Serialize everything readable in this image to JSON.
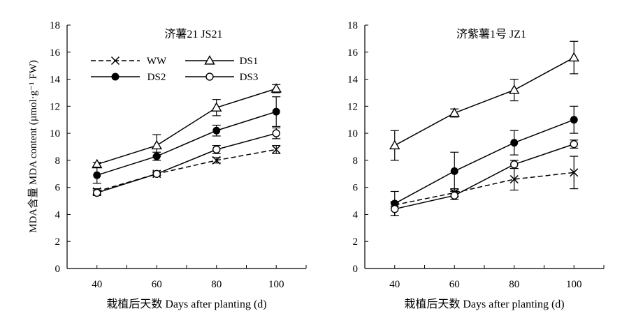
{
  "y_axis_label": "MDA含量 MDA content (µmol·g⁻¹ FW)",
  "legend": [
    {
      "label": "WW",
      "marker": "cross",
      "dash": true
    },
    {
      "label": "DS1",
      "marker": "triangle",
      "dash": false
    },
    {
      "label": "DS2",
      "marker": "filled-circle",
      "dash": false
    },
    {
      "label": "DS3",
      "marker": "open-circle",
      "dash": false
    }
  ],
  "chart_data": [
    {
      "type": "line",
      "title": "济薯21 JS21",
      "xlabel": "栽植后天数 Days after planting (d)",
      "ylabel": "MDA含量 MDA content (µmol·g⁻¹ FW)",
      "x": [
        40,
        60,
        80,
        100
      ],
      "xlim": [
        30,
        110
      ],
      "ylim": [
        0,
        18
      ],
      "yticks": [
        0,
        2,
        4,
        6,
        8,
        10,
        12,
        14,
        16,
        18
      ],
      "legend_position": "top-left",
      "series": [
        {
          "name": "WW",
          "marker": "cross",
          "dash": true,
          "values": [
            5.7,
            7.0,
            8.0,
            8.8
          ],
          "errors": [
            0.2,
            0.1,
            0.2,
            0.3
          ]
        },
        {
          "name": "DS1",
          "marker": "triangle",
          "dash": false,
          "values": [
            7.7,
            9.1,
            11.9,
            13.3
          ],
          "errors": [
            0.15,
            0.8,
            0.6,
            0.3
          ]
        },
        {
          "name": "DS2",
          "marker": "filled-circle",
          "dash": false,
          "values": [
            6.9,
            8.3,
            10.2,
            11.6
          ],
          "errors": [
            0.6,
            0.3,
            0.4,
            1.1
          ]
        },
        {
          "name": "DS3",
          "marker": "open-circle",
          "dash": false,
          "values": [
            5.6,
            7.0,
            8.8,
            10.0
          ],
          "errors": [
            0.2,
            0.15,
            0.3,
            0.4
          ]
        }
      ]
    },
    {
      "type": "line",
      "title": "济紫薯1号 JZ1",
      "xlabel": "栽植后天数 Days after planting (d)",
      "ylabel": "",
      "x": [
        40,
        60,
        80,
        100
      ],
      "xlim": [
        30,
        110
      ],
      "ylim": [
        0,
        18
      ],
      "yticks": [
        0,
        2,
        4,
        6,
        8,
        10,
        12,
        14,
        16,
        18
      ],
      "series": [
        {
          "name": "WW",
          "marker": "cross",
          "dash": true,
          "values": [
            4.7,
            5.6,
            6.6,
            7.1
          ],
          "errors": [
            0.1,
            0.3,
            0.8,
            1.2
          ]
        },
        {
          "name": "DS1",
          "marker": "triangle",
          "dash": false,
          "values": [
            9.1,
            11.5,
            13.2,
            15.6
          ],
          "errors": [
            1.1,
            0.3,
            0.8,
            1.2
          ]
        },
        {
          "name": "DS2",
          "marker": "filled-circle",
          "dash": false,
          "values": [
            4.8,
            7.2,
            9.3,
            11.0
          ],
          "errors": [
            0.9,
            1.4,
            0.9,
            1.0
          ]
        },
        {
          "name": "DS3",
          "marker": "open-circle",
          "dash": false,
          "values": [
            4.4,
            5.4,
            7.7,
            9.2
          ],
          "errors": [
            0.5,
            0.3,
            0.3,
            0.3
          ]
        }
      ]
    }
  ]
}
